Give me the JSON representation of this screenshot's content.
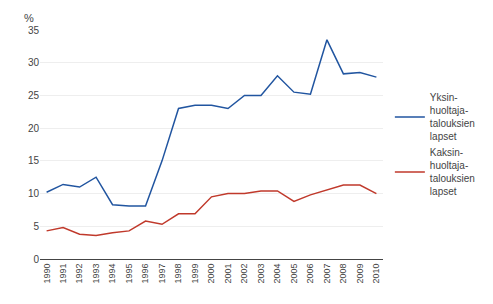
{
  "chart_data": {
    "type": "line",
    "ylabel": "%",
    "x": [
      1990,
      1991,
      1992,
      1993,
      1994,
      1995,
      1996,
      1997,
      1998,
      1999,
      2000,
      2001,
      2002,
      2003,
      2004,
      2005,
      2006,
      2007,
      2008,
      2009,
      2010
    ],
    "series": [
      {
        "name": "Yksin-\nhuoltaja-\ntalouksien\nlapset",
        "color": "#2155A0",
        "values": [
          10.2,
          11.4,
          11.0,
          12.5,
          8.3,
          8.1,
          8.1,
          15.0,
          23.0,
          23.5,
          23.5,
          23.0,
          25.0,
          25.0,
          28.0,
          25.5,
          25.2,
          33.5,
          28.3,
          28.5,
          27.8
        ]
      },
      {
        "name": "Kaksin-\nhuoltaja-\ntalouksien\nlapset",
        "color": "#C0392B",
        "values": [
          4.3,
          4.8,
          3.8,
          3.6,
          4.0,
          4.3,
          5.8,
          5.3,
          6.9,
          6.9,
          9.5,
          10.0,
          10.0,
          10.4,
          10.4,
          8.8,
          9.8,
          10.5,
          11.3,
          11.3,
          10.0
        ]
      }
    ],
    "xlim": [
      1989.6,
      2010.4
    ],
    "xticks": [
      1990,
      1991,
      1992,
      1993,
      1994,
      1995,
      1996,
      1997,
      1998,
      1999,
      2000,
      2001,
      2002,
      2003,
      2004,
      2005,
      2006,
      2007,
      2008,
      2009,
      2010
    ],
    "ylim": [
      0,
      35
    ],
    "yticks": [
      0,
      5,
      10,
      15,
      20,
      25,
      30,
      35
    ],
    "grid": true,
    "legend": "right"
  }
}
